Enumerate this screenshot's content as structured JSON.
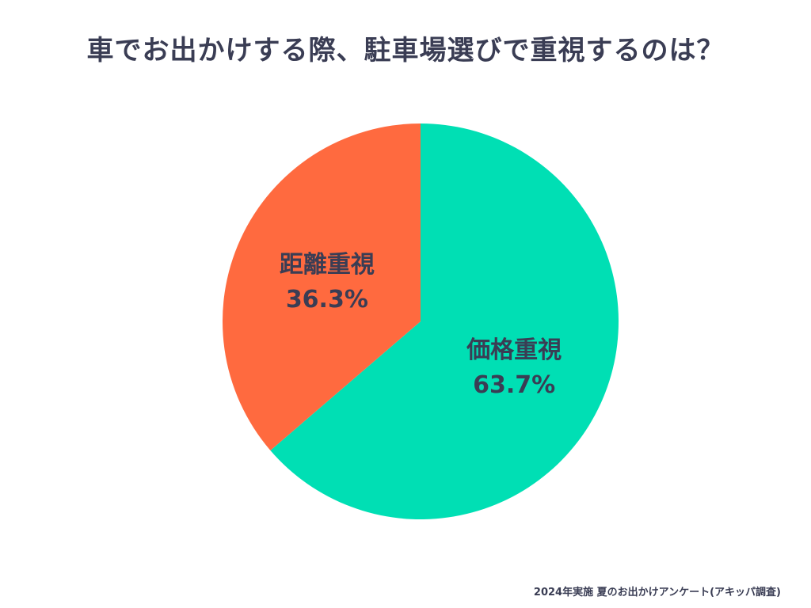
{
  "chart_data": {
    "type": "pie",
    "title": "車でお出かけする際、駐車場選びで重視するのは？",
    "slices": [
      {
        "label": "価格重視",
        "value": 63.7,
        "value_label": "63.7%",
        "color": "#00dfb4"
      },
      {
        "label": "距離重視",
        "value": 36.3,
        "value_label": "36.3%",
        "color": "#ff6a3f"
      }
    ],
    "start": "12 o'clock",
    "direction": "clockwise",
    "legend": "none"
  },
  "footer": {
    "source": "2024年実施 夏のお出かけアンケート(アキッパ調査)"
  }
}
